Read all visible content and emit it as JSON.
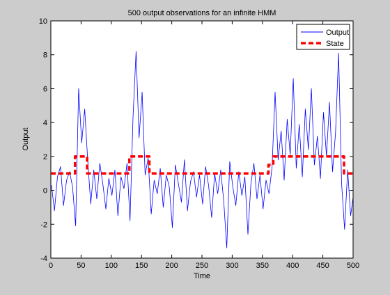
{
  "window": {
    "background": "#cccccc"
  },
  "chart_data": {
    "type": "line",
    "title": "500 output observations for an infinite HMM",
    "xlabel": "Time",
    "ylabel": "Output",
    "xlim": [
      0,
      500
    ],
    "ylim": [
      -4,
      10
    ],
    "xticks": [
      0,
      50,
      100,
      150,
      200,
      250,
      300,
      350,
      400,
      450,
      500
    ],
    "yticks": [
      -4,
      -2,
      0,
      2,
      4,
      6,
      8,
      10
    ],
    "grid": false,
    "legend_position": "top-right",
    "series": [
      {
        "name": "Output",
        "color": "#0000ff",
        "style": "solid",
        "x": [
          1,
          6,
          11,
          16,
          21,
          26,
          31,
          36,
          41,
          46,
          51,
          56,
          61,
          66,
          71,
          76,
          81,
          86,
          91,
          96,
          101,
          106,
          111,
          116,
          121,
          126,
          131,
          136,
          141,
          146,
          151,
          156,
          161,
          166,
          171,
          176,
          181,
          186,
          191,
          196,
          201,
          206,
          211,
          216,
          221,
          226,
          231,
          236,
          241,
          246,
          251,
          256,
          261,
          266,
          271,
          276,
          281,
          286,
          291,
          296,
          301,
          306,
          311,
          316,
          321,
          326,
          331,
          336,
          341,
          346,
          351,
          356,
          361,
          366,
          371,
          376,
          381,
          386,
          391,
          396,
          401,
          406,
          411,
          416,
          421,
          426,
          431,
          436,
          441,
          446,
          451,
          456,
          461,
          466,
          471,
          476,
          481,
          486,
          491,
          496,
          500
        ],
        "y": [
          0.3,
          -1.2,
          0.8,
          1.4,
          -0.9,
          0.6,
          1.1,
          0.2,
          -2.1,
          6.0,
          2.8,
          4.8,
          1.8,
          -0.8,
          1.2,
          -0.5,
          1.6,
          0.4,
          -1.1,
          0.7,
          -0.3,
          1.2,
          -1.5,
          0.8,
          0.1,
          1.6,
          -1.8,
          4.3,
          8.2,
          3.1,
          5.8,
          0.9,
          1.9,
          -1.4,
          0.6,
          -0.2,
          1.3,
          -1.0,
          0.9,
          0.2,
          -2.2,
          1.5,
          0.4,
          -0.7,
          1.8,
          -1.2,
          0.5,
          1.1,
          -0.4,
          0.9,
          -0.8,
          1.4,
          0.3,
          -1.6,
          1.0,
          -0.2,
          1.2,
          -0.6,
          -3.4,
          1.7,
          0.2,
          -0.9,
          1.1,
          -0.3,
          0.8,
          -2.6,
          0.4,
          1.6,
          -0.5,
          0.9,
          -1.1,
          0.6,
          -0.2,
          1.4,
          5.8,
          1.8,
          3.5,
          0.6,
          4.2,
          2.1,
          6.6,
          1.3,
          3.9,
          0.8,
          4.8,
          2.4,
          6.0,
          1.5,
          3.2,
          0.7,
          4.6,
          2.0,
          5.2,
          1.1,
          3.4,
          8.1,
          0.4,
          -2.3,
          1.2,
          -1.5,
          -0.4
        ]
      },
      {
        "name": "State",
        "color": "#ff0000",
        "style": "dashed",
        "x": [
          0,
          40,
          40,
          60,
          60,
          130,
          130,
          163,
          163,
          360,
          360,
          368,
          368,
          485,
          485,
          500
        ],
        "y": [
          1,
          1,
          2,
          2,
          1,
          1,
          2,
          2,
          1,
          1,
          1.5,
          1.5,
          2,
          2,
          1,
          1
        ]
      }
    ]
  }
}
